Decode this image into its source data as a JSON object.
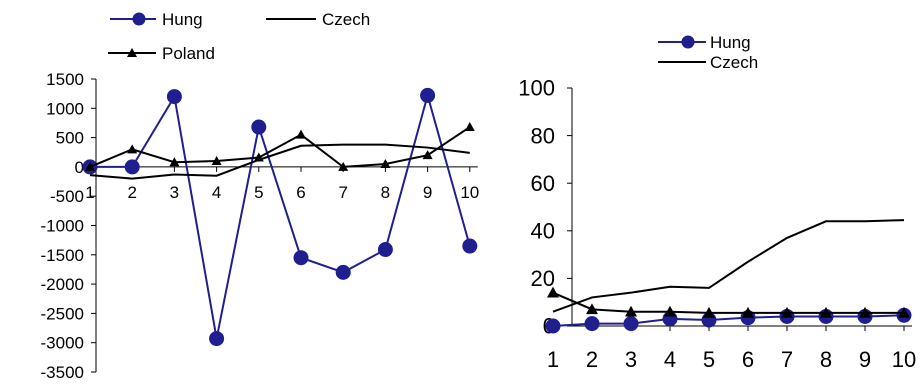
{
  "chart_data": [
    {
      "type": "line",
      "x": [
        1,
        2,
        3,
        4,
        5,
        6,
        7,
        8,
        9,
        10
      ],
      "ylim": [
        -3500,
        1500
      ],
      "yticks": [
        1500,
        1000,
        500,
        0,
        -500,
        -1000,
        -1500,
        -2000,
        -2500,
        -3000,
        -3500
      ],
      "legend_position": "top",
      "grid": false,
      "series": [
        {
          "name": "Hung",
          "marker": "circle",
          "color": "#1f1f8f",
          "values": [
            0,
            0,
            1200,
            -2930,
            680,
            -1550,
            -1800,
            -1410,
            1220,
            -1350
          ]
        },
        {
          "name": "Czech",
          "marker": "none",
          "color": "#000000",
          "values": [
            -140,
            -200,
            -130,
            -150,
            120,
            360,
            380,
            380,
            330,
            240
          ]
        },
        {
          "name": "Poland",
          "marker": "triangle",
          "color": "#000000",
          "values": [
            0,
            300,
            80,
            100,
            160,
            550,
            0,
            50,
            200,
            680
          ]
        }
      ]
    },
    {
      "type": "line",
      "x": [
        1,
        2,
        3,
        4,
        5,
        6,
        7,
        8,
        9,
        10
      ],
      "ylim": [
        0,
        100
      ],
      "yticks": [
        100,
        80,
        60,
        40,
        20,
        0
      ],
      "legend_position": "top-right",
      "grid": false,
      "series": [
        {
          "name": "Hung",
          "marker": "circle",
          "color": "#1f1f8f",
          "values": [
            0,
            1,
            1,
            3,
            2.5,
            3.5,
            4,
            4,
            4,
            4.5
          ]
        },
        {
          "name": "Czech",
          "marker": "none",
          "color": "#000000",
          "values": [
            6,
            12,
            14,
            16.5,
            16,
            27,
            37,
            44,
            44,
            44.5
          ]
        },
        {
          "name": "",
          "marker": "triangle",
          "color": "#000000",
          "values": [
            14,
            7,
            6,
            6,
            5.5,
            5.5,
            5.5,
            5.5,
            5.5,
            5.5
          ]
        }
      ]
    }
  ]
}
